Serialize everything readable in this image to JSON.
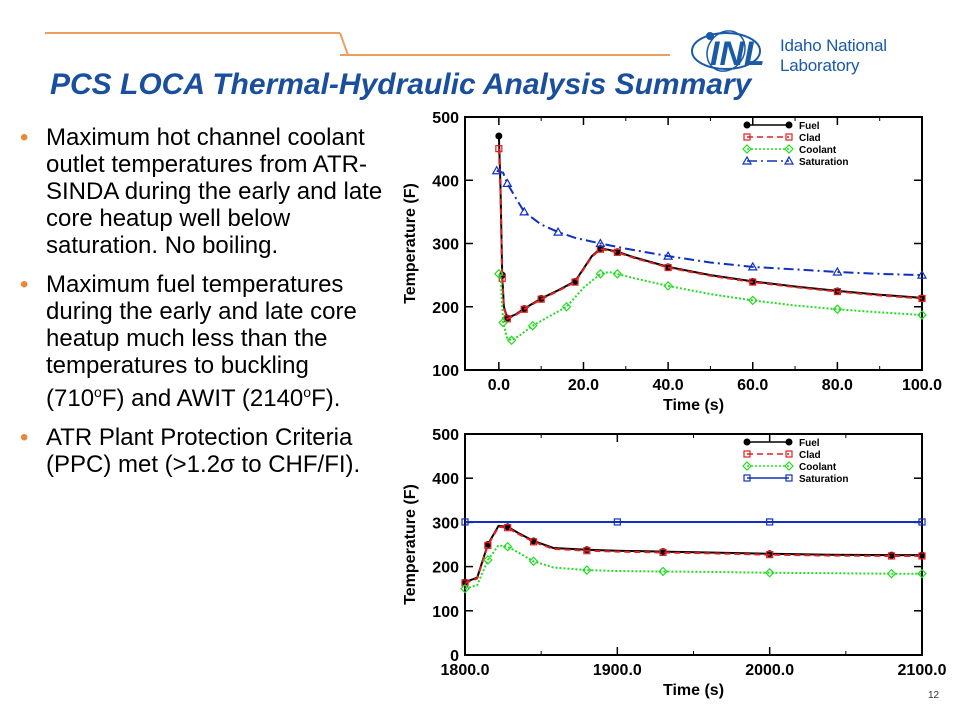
{
  "header": {
    "logo_mark": "INL",
    "logo_text": "Idaho National Laboratory",
    "title": "PCS LOCA Thermal-Hydraulic Analysis Summary"
  },
  "bullets": [
    {
      "text": "Maximum hot channel coolant outlet temperatures from ATR-SINDA during the early and late core heatup well below saturation. No boiling."
    },
    {
      "text_a": "Maximum fuel temperatures during the early and late core heatup much less than the temperatures to buckling (710",
      "deg1": "o",
      "text_b": "F) and AWIT (2140",
      "deg2": "o",
      "text_c": "F)."
    },
    {
      "text": "ATR Plant Protection Criteria (PPC) met (>1.2σ to CHF/FI)."
    }
  ],
  "page_number": "12",
  "colors": {
    "title": "#1a4f9e",
    "bullet": "#e8883a",
    "fuel": "#000000",
    "clad": "#e02020",
    "coolant": "#22dd22",
    "saturation": "#1030c0"
  },
  "chart_data": [
    {
      "type": "line",
      "xlabel": "Time (s)",
      "ylabel": "Temperature (F)",
      "xlim": [
        -8,
        100
      ],
      "ylim": [
        100,
        500
      ],
      "xticks": [
        "0.0",
        "20.0",
        "40.0",
        "60.0",
        "80.0",
        "100.0"
      ],
      "xtick_values": [
        0,
        20,
        40,
        60,
        80,
        100
      ],
      "yticks": [
        "100",
        "200",
        "300",
        "400",
        "500"
      ],
      "ytick_values": [
        100,
        200,
        300,
        400,
        500
      ],
      "legend_position": "top-right",
      "series": [
        {
          "name": "Fuel",
          "color": "#000000",
          "dash": "",
          "marker": "circle",
          "x": [
            0,
            0.4,
            0.8,
            1.2,
            2,
            4,
            6,
            8,
            10,
            14,
            18,
            22,
            24,
            26,
            28,
            32,
            40,
            50,
            60,
            70,
            80,
            90,
            100
          ],
          "y": [
            470,
            390,
            250,
            200,
            182,
            188,
            197,
            205,
            213,
            226,
            240,
            280,
            292,
            290,
            287,
            278,
            263,
            250,
            240,
            232,
            225,
            219,
            214
          ]
        },
        {
          "name": "Clad",
          "color": "#e02020",
          "dash": "6,4",
          "marker": "square",
          "x": [
            0,
            0.4,
            0.8,
            1.2,
            2,
            4,
            6,
            8,
            10,
            14,
            18,
            22,
            24,
            26,
            28,
            32,
            40,
            50,
            60,
            70,
            80,
            90,
            100
          ],
          "y": [
            450,
            380,
            245,
            198,
            181,
            187,
            196,
            204,
            212,
            225,
            239,
            279,
            291,
            289,
            286,
            277,
            262,
            249,
            239,
            231,
            224,
            218,
            213
          ]
        },
        {
          "name": "Coolant",
          "color": "#22dd22",
          "dash": "2,2",
          "marker": "diamond",
          "x": [
            0,
            0.4,
            1,
            2,
            3,
            5,
            8,
            12,
            16,
            20,
            24,
            26,
            28,
            32,
            40,
            50,
            60,
            70,
            80,
            90,
            100
          ],
          "y": [
            252,
            250,
            175,
            150,
            147,
            155,
            170,
            185,
            200,
            230,
            252,
            255,
            252,
            245,
            233,
            220,
            210,
            202,
            196,
            191,
            187
          ]
        },
        {
          "name": "Saturation",
          "color": "#1030c0",
          "dash": "10,4,2,4",
          "marker": "triangle",
          "x": [
            -0.5,
            1,
            2,
            4,
            6,
            10,
            14,
            18,
            24,
            30,
            40,
            50,
            60,
            70,
            80,
            90,
            100
          ],
          "y": [
            415,
            412,
            395,
            372,
            350,
            330,
            318,
            309,
            300,
            292,
            280,
            270,
            263,
            259,
            255,
            252,
            250
          ]
        }
      ]
    },
    {
      "type": "line",
      "xlabel": "Time (s)",
      "ylabel": "Temperature (F)",
      "xlim": [
        1800,
        2100
      ],
      "ylim": [
        0,
        500
      ],
      "xticks": [
        "1800.0",
        "1900.0",
        "2000.0",
        "2100.0"
      ],
      "xtick_values": [
        1800,
        1900,
        2000,
        2100
      ],
      "yticks": [
        "0",
        "100",
        "200",
        "300",
        "400",
        "500"
      ],
      "ytick_values": [
        0,
        100,
        200,
        300,
        400,
        500
      ],
      "legend_position": "top-right",
      "series": [
        {
          "name": "Fuel",
          "color": "#000000",
          "dash": "",
          "marker": "circle",
          "x": [
            1800,
            1808,
            1815,
            1822,
            1828,
            1835,
            1845,
            1858,
            1880,
            1900,
            1930,
            1960,
            2000,
            2040,
            2080,
            2100
          ],
          "y": [
            165,
            175,
            250,
            292,
            290,
            276,
            258,
            242,
            238,
            236,
            234,
            232,
            229,
            227,
            226,
            226
          ]
        },
        {
          "name": "Clad",
          "color": "#e02020",
          "dash": "6,4",
          "marker": "square",
          "x": [
            1800,
            1808,
            1815,
            1822,
            1828,
            1835,
            1845,
            1858,
            1880,
            1900,
            1930,
            1960,
            2000,
            2040,
            2080,
            2100
          ],
          "y": [
            163,
            173,
            248,
            290,
            288,
            274,
            256,
            240,
            236,
            234,
            232,
            230,
            227,
            225,
            224,
            224
          ]
        },
        {
          "name": "Coolant",
          "color": "#22dd22",
          "dash": "2,2",
          "marker": "diamond",
          "x": [
            1800,
            1808,
            1815,
            1822,
            1828,
            1835,
            1845,
            1858,
            1880,
            1900,
            1930,
            1960,
            2000,
            2040,
            2080,
            2100
          ],
          "y": [
            150,
            158,
            215,
            248,
            245,
            232,
            212,
            198,
            192,
            190,
            189,
            188,
            186,
            185,
            184,
            184
          ]
        },
        {
          "name": "Saturation",
          "color": "#1030c0",
          "dash": "",
          "marker": "square",
          "x": [
            1800,
            1850,
            1900,
            1950,
            2000,
            2050,
            2100
          ],
          "y": [
            301,
            301,
            301,
            301,
            301,
            301,
            301
          ]
        }
      ]
    }
  ]
}
